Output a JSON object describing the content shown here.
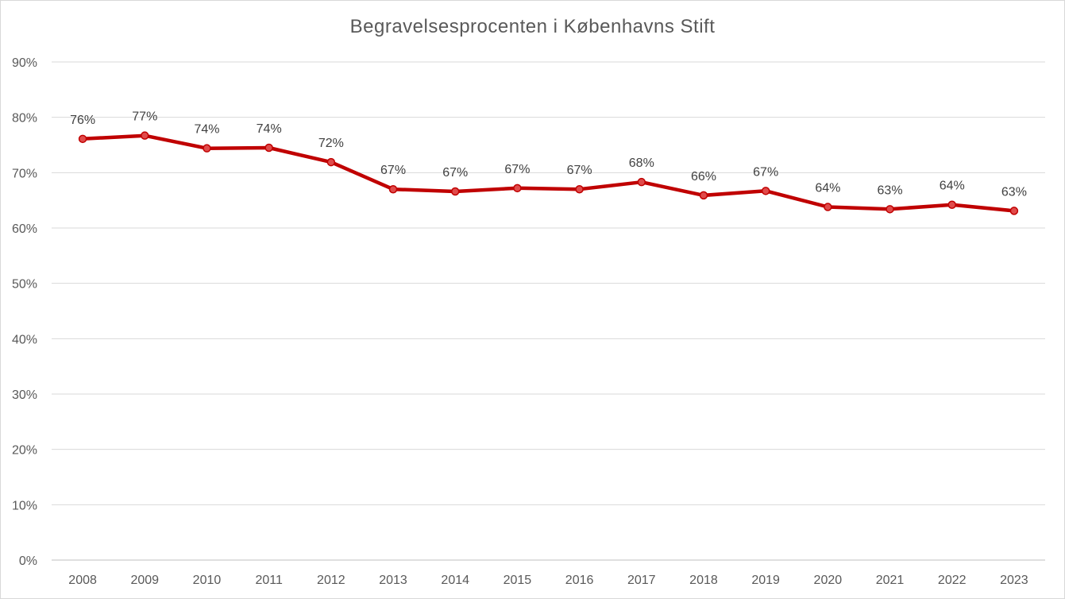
{
  "chart_data": {
    "type": "line",
    "title": "Begravelsesprocenten i Københavns Stift",
    "xlabel": "",
    "ylabel": "",
    "categories": [
      "2008",
      "2009",
      "2010",
      "2011",
      "2012",
      "2013",
      "2014",
      "2015",
      "2016",
      "2017",
      "2018",
      "2019",
      "2020",
      "2021",
      "2022",
      "2023"
    ],
    "series": [
      {
        "values": [
          76.1,
          76.7,
          74.4,
          74.5,
          71.9,
          67.0,
          66.6,
          67.2,
          67.0,
          68.3,
          65.9,
          66.7,
          63.8,
          63.4,
          64.2,
          63.1
        ],
        "data_labels": [
          "76%",
          "77%",
          "74%",
          "74%",
          "72%",
          "67%",
          "67%",
          "67%",
          "67%",
          "68%",
          "66%",
          "67%",
          "64%",
          "63%",
          "64%",
          "63%"
        ],
        "color": "#c00000",
        "marker_fill": "#e04b4b"
      }
    ],
    "ylim": [
      0,
      90
    ],
    "yticks": [
      0,
      10,
      20,
      30,
      40,
      50,
      60,
      70,
      80,
      90
    ],
    "ytick_labels": [
      "0%",
      "10%",
      "20%",
      "30%",
      "40%",
      "50%",
      "60%",
      "70%",
      "80%",
      "90%"
    ],
    "grid": true,
    "gridline_color": "#d9d9d9",
    "legend": "none"
  }
}
